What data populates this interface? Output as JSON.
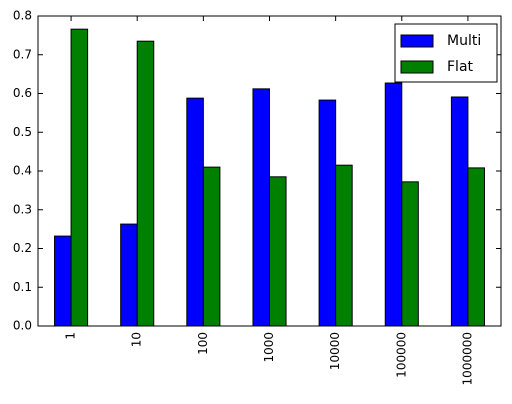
{
  "chart_data": {
    "type": "bar",
    "categories": [
      "1",
      "10",
      "100",
      "1000",
      "10000",
      "100000",
      "1000000"
    ],
    "series": [
      {
        "name": "Multi",
        "color": "#0000ff",
        "values": [
          0.232,
          0.263,
          0.588,
          0.612,
          0.583,
          0.627,
          0.591
        ]
      },
      {
        "name": "Flat",
        "color": "#008000",
        "values": [
          0.766,
          0.735,
          0.41,
          0.385,
          0.415,
          0.372,
          0.408
        ]
      }
    ],
    "ylim": [
      0,
      0.8
    ],
    "yticks": [
      {
        "value": 0,
        "label": "0.0"
      },
      0.1,
      0.2,
      0.3,
      0.4,
      0.5,
      0.6,
      0.7,
      0.8
    ],
    "legend": "upper right"
  }
}
